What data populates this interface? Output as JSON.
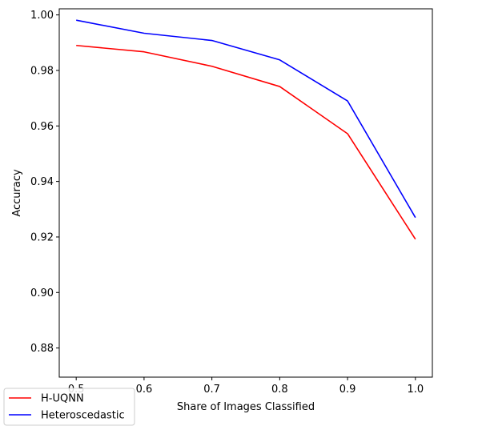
{
  "chart_data": {
    "type": "line",
    "title": "",
    "xlabel": "Share of Images Classified",
    "ylabel": "Accuracy",
    "xlim": [
      0.475,
      1.025
    ],
    "ylim": [
      0.8695,
      1.0022
    ],
    "x_ticks": [
      0.5,
      0.6,
      0.7,
      0.8,
      0.9,
      1.0
    ],
    "x_tick_labels": [
      "0.5",
      "0.6",
      "0.7",
      "0.8",
      "0.9",
      "1.0"
    ],
    "y_ticks": [
      0.88,
      0.9,
      0.92,
      0.94,
      0.96,
      0.98,
      1.0
    ],
    "y_tick_labels": [
      "0.88",
      "0.90",
      "0.92",
      "0.94",
      "0.96",
      "0.98",
      "1.00"
    ],
    "grid": false,
    "legend_position": "bottom-left",
    "x": [
      0.5,
      0.6,
      0.7,
      0.8,
      0.9,
      1.0
    ],
    "series": [
      {
        "name": "H-UQNN",
        "color": "#ff0000",
        "values": [
          0.989,
          0.9867,
          0.9815,
          0.9742,
          0.9572,
          0.9192
        ]
      },
      {
        "name": "Heteroscedastic",
        "color": "#0000ff",
        "values": [
          0.9981,
          0.9934,
          0.9908,
          0.9838,
          0.969,
          0.927
        ]
      }
    ]
  }
}
